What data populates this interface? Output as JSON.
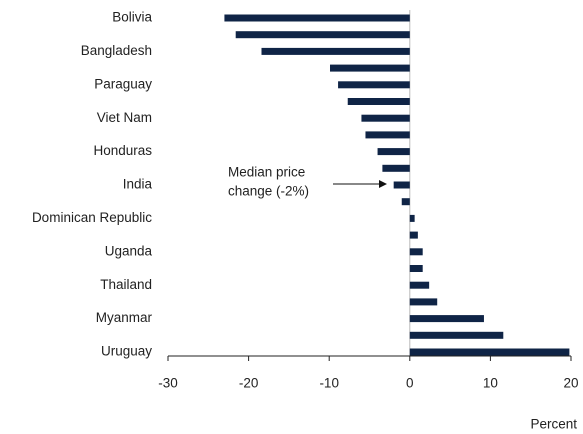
{
  "chart_data": {
    "type": "barh",
    "categories": [
      "Bolivia",
      null,
      "Bangladesh",
      null,
      "Paraguay",
      null,
      "Viet Nam",
      null,
      "Honduras",
      null,
      "India",
      null,
      "Dominican Republic",
      null,
      "Uganda",
      null,
      "Thailand",
      null,
      "Myanmar",
      null,
      "Uruguay"
    ],
    "values": [
      -23.0,
      -21.6,
      -18.4,
      -9.9,
      -8.9,
      -7.7,
      -6.0,
      -5.5,
      -4.0,
      -3.4,
      -2.0,
      -1.0,
      0.6,
      1.0,
      1.6,
      1.6,
      2.4,
      3.4,
      9.2,
      11.6,
      19.8
    ],
    "color": "#0f2446",
    "xlim": [
      -30,
      20
    ],
    "xticks": [
      -30,
      -20,
      -10,
      0,
      10,
      20
    ],
    "x_label": "Percent",
    "annotation": [
      "Median price",
      "change (-2%)"
    ]
  }
}
